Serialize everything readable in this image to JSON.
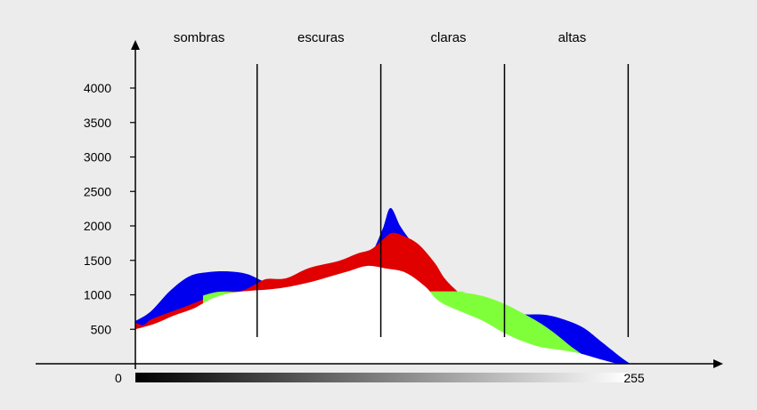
{
  "chart_data": {
    "type": "area",
    "zones": [
      "sombras",
      "escuras",
      "claras",
      "altas"
    ],
    "y_ticks": [
      500,
      1000,
      1500,
      2000,
      2500,
      3000,
      3500,
      4000
    ],
    "x_tick_labels": {
      "min": "0",
      "max": "255"
    },
    "xlim": [
      0,
      255
    ],
    "ylim": [
      0,
      4000
    ],
    "colors": {
      "blue": "#0000ee",
      "red": "#e00000",
      "green": "#7fff3a",
      "luminance": "#ffffff",
      "background": "#ececec"
    },
    "series": [
      {
        "color": "blue",
        "x": [
          0,
          8,
          18,
          28,
          38,
          48,
          58,
          68,
          78,
          90,
          105,
          115,
          122,
          128,
          132,
          137,
          142,
          150,
          160,
          170,
          180,
          190,
          200,
          212,
          222,
          232,
          242,
          255,
          260,
          265
        ],
        "values": [
          620,
          760,
          1060,
          1270,
          1330,
          1340,
          1300,
          1180,
          1160,
          1260,
          1400,
          1480,
          1600,
          1960,
          2260,
          2000,
          1800,
          1520,
          1180,
          920,
          860,
          780,
          720,
          710,
          640,
          520,
          300,
          20,
          0,
          0
        ]
      },
      {
        "color": "red",
        "x": [
          0,
          4,
          8,
          15,
          25,
          35,
          45,
          55,
          62,
          68,
          78,
          90,
          105,
          115,
          122,
          128,
          133,
          140,
          147,
          155,
          160,
          167,
          175,
          180,
          182
        ],
        "values": [
          600,
          560,
          640,
          720,
          820,
          930,
          1040,
          1060,
          1150,
          1230,
          1240,
          1390,
          1490,
          1600,
          1660,
          1800,
          1900,
          1840,
          1720,
          1460,
          1240,
          1040,
          860,
          800,
          790
        ]
      },
      {
        "color": "green",
        "x": [
          35,
          42,
          50,
          55,
          160,
          170,
          180,
          190,
          200,
          210,
          218,
          225,
          230,
          235,
          240
        ],
        "values": [
          990,
          1040,
          1050,
          1040,
          1050,
          1030,
          980,
          880,
          740,
          580,
          420,
          260,
          160,
          60,
          0
        ]
      },
      {
        "color": "luminance",
        "x": [
          0,
          10,
          20,
          30,
          40,
          50,
          60,
          70,
          80,
          90,
          100,
          110,
          120,
          130,
          140,
          150,
          155,
          160,
          170,
          180,
          190,
          200,
          210,
          220,
          230,
          240,
          250,
          255
        ],
        "values": [
          500,
          580,
          700,
          800,
          950,
          1030,
          1060,
          1080,
          1120,
          1180,
          1260,
          1340,
          1420,
          1380,
          1320,
          1120,
          960,
          860,
          740,
          620,
          460,
          330,
          240,
          200,
          150,
          70,
          0,
          0
        ]
      }
    ],
    "dividers_x": [
      63,
      127,
      191,
      255
    ],
    "zone_centers_x": [
      33,
      96,
      162,
      226
    ],
    "gradient_bar": {
      "from": "#000000",
      "to": "#ffffff"
    }
  }
}
